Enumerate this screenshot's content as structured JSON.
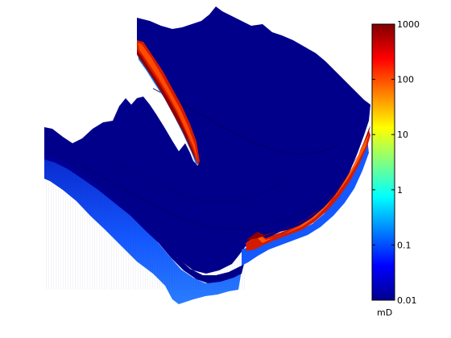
{
  "figure": {
    "kind": "3d-surface-render",
    "colormap": "jet",
    "colorbar": {
      "scale": "log",
      "range": [
        0.01,
        1000
      ],
      "unit": "mD",
      "ticks": [
        {
          "value": 1000,
          "label": "1000"
        },
        {
          "value": 100,
          "label": "100"
        },
        {
          "value": 10,
          "label": "10"
        },
        {
          "value": 1,
          "label": "1"
        },
        {
          "value": 0.1,
          "label": "0.1"
        },
        {
          "value": 0.01,
          "label": "0.01"
        }
      ],
      "colors": [
        "#00008f",
        "#0000ff",
        "#0080ff",
        "#00ffff",
        "#80ff80",
        "#ffff00",
        "#ff8000",
        "#ff0000",
        "#800000"
      ]
    },
    "surface_colors": {
      "top": "#00008b",
      "top_shade": "#000070",
      "side_dark": "#0a1fb0",
      "side_light": "#1a6cff",
      "high_perm_bright": "#ff3b00",
      "high_perm_mid": "#d71a00",
      "high_perm_dark": "#8f0000",
      "edge_dark": "#001060"
    }
  }
}
